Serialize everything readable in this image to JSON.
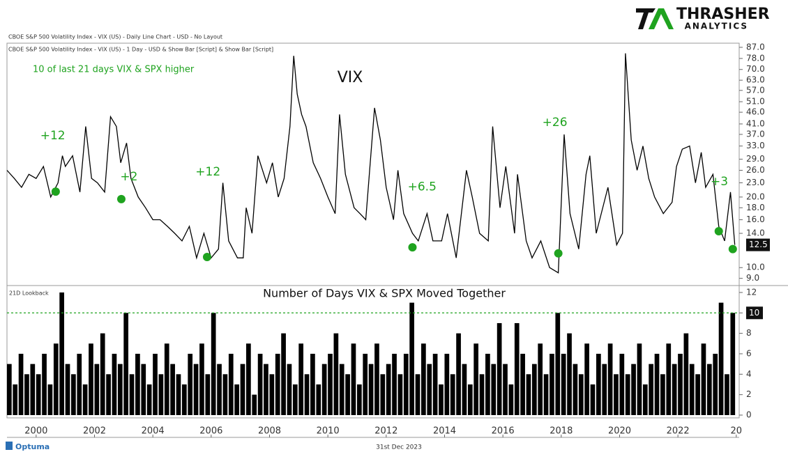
{
  "header": {
    "logo_top": "THRASHER",
    "logo_bottom": "ANALYTICS",
    "line1": "CBOE S&P 500 Volatility Index - VIX (US) - Daily Line Chart - USD - No Layout",
    "line2": "CBOE S&P 500 Volatility Index - VIX (US) - 1 Day - USD & Show Bar [Script] & Show Bar [Script]",
    "note": "10 of last 21 days VIX & SPX higher"
  },
  "footer": {
    "brand": "Optuma",
    "date": "31st Dec 2023"
  },
  "chart_data": [
    {
      "type": "line",
      "title": "VIX",
      "log_scale": true,
      "color": "#000000",
      "x": [
        1999.0,
        1999.25,
        1999.5,
        1999.75,
        2000.0,
        2000.25,
        2000.5,
        2000.75,
        2000.9,
        2001.0,
        2001.25,
        2001.5,
        2001.7,
        2001.9,
        2002.1,
        2002.35,
        2002.55,
        2002.75,
        2002.9,
        2003.1,
        2003.25,
        2003.5,
        2003.75,
        2004.0,
        2004.25,
        2004.5,
        2004.75,
        2005.0,
        2005.25,
        2005.5,
        2005.75,
        2006.0,
        2006.25,
        2006.4,
        2006.6,
        2006.9,
        2007.1,
        2007.2,
        2007.4,
        2007.6,
        2007.9,
        2008.1,
        2008.3,
        2008.5,
        2008.7,
        2008.83,
        2008.95,
        2009.1,
        2009.25,
        2009.5,
        2009.75,
        2010.0,
        2010.25,
        2010.4,
        2010.6,
        2010.9,
        2011.1,
        2011.3,
        2011.6,
        2011.8,
        2012.0,
        2012.25,
        2012.4,
        2012.6,
        2012.9,
        2013.1,
        2013.4,
        2013.6,
        2013.9,
        2014.1,
        2014.4,
        2014.75,
        2014.95,
        2015.2,
        2015.5,
        2015.65,
        2015.9,
        2016.1,
        2016.4,
        2016.5,
        2016.8,
        2017.0,
        2017.3,
        2017.6,
        2017.9,
        2018.1,
        2018.3,
        2018.6,
        2018.85,
        2018.98,
        2019.2,
        2019.6,
        2019.9,
        2020.1,
        2020.2,
        2020.4,
        2020.6,
        2020.8,
        2021.0,
        2021.2,
        2021.5,
        2021.8,
        2021.95,
        2022.15,
        2022.4,
        2022.6,
        2022.8,
        2022.95,
        2023.2,
        2023.4,
        2023.6,
        2023.8,
        2023.95
      ],
      "values": [
        26,
        24,
        22,
        25,
        24,
        27,
        20,
        23,
        30,
        27,
        30,
        21,
        40,
        24,
        23,
        21,
        44,
        40,
        28,
        34,
        24,
        20,
        18,
        16,
        16,
        15,
        14,
        13,
        15,
        11,
        14,
        11,
        12,
        23,
        13,
        11,
        11,
        18,
        14,
        30,
        23,
        28,
        20,
        24,
        40,
        80,
        55,
        45,
        40,
        28,
        24,
        20,
        17,
        45,
        25,
        18,
        17,
        16,
        48,
        35,
        22,
        16,
        26,
        17,
        14,
        13,
        17,
        13,
        13,
        17,
        11,
        26,
        20,
        14,
        13,
        40,
        18,
        27,
        14,
        25,
        13,
        11,
        13,
        10,
        9.5,
        37,
        17,
        12,
        25,
        30,
        14,
        22,
        12.5,
        14,
        82,
        35,
        26,
        33,
        24,
        20,
        17,
        19,
        27,
        32,
        33,
        23,
        31,
        22,
        25,
        15,
        13,
        21,
        12.5
      ],
      "last_label": "12.5",
      "markers": {
        "color": "#1fa31f",
        "x": [
          2000.67,
          2002.92,
          2005.86,
          2012.9,
          2017.9,
          2023.4,
          2023.88
        ],
        "values": [
          21.1,
          19.6,
          11.1,
          12.2,
          11.5,
          14.3,
          12.0
        ]
      },
      "annotations": [
        {
          "text": "+12",
          "x": 2000.57,
          "y": 36.5
        },
        {
          "text": "+2",
          "x": 2003.18,
          "y": 24.4
        },
        {
          "text": "+12",
          "x": 2005.89,
          "y": 25.6
        },
        {
          "text": "+6.5",
          "x": 2013.23,
          "y": 22.1
        },
        {
          "text": "+26",
          "x": 2017.78,
          "y": 41.6
        },
        {
          "text": "+3",
          "x": 2023.42,
          "y": 23.2
        }
      ],
      "xlim": [
        1999,
        2024.1
      ],
      "ylim": [
        8.5,
        90
      ],
      "yticks": [
        {
          "value": 87,
          "label": "87.0"
        },
        {
          "value": 78,
          "label": "78.0"
        },
        {
          "value": 70,
          "label": "70.0"
        },
        {
          "value": 63,
          "label": "63.0"
        },
        {
          "value": 57,
          "label": "57.0"
        },
        {
          "value": 51,
          "label": "51.0"
        },
        {
          "value": 46,
          "label": "46.0"
        },
        {
          "value": 41,
          "label": "41.0"
        },
        {
          "value": 37,
          "label": "37.0"
        },
        {
          "value": 33,
          "label": "33.0"
        },
        {
          "value": 29,
          "label": "29.0"
        },
        {
          "value": 26,
          "label": "26.0"
        },
        {
          "value": 23,
          "label": "23.0"
        },
        {
          "value": 20,
          "label": "20.0"
        },
        {
          "value": 18,
          "label": "18.0"
        },
        {
          "value": 16,
          "label": "16.0"
        },
        {
          "value": 14,
          "label": "14.0"
        },
        {
          "value": 10,
          "label": "10.0"
        },
        {
          "value": 9,
          "label": "9.0"
        }
      ]
    },
    {
      "type": "bar",
      "title": "Number of Days VIX & SPX Moved Together",
      "label": "21D Lookback",
      "color": "#000000",
      "x": [
        1999.0,
        1999.2,
        1999.4,
        1999.6,
        1999.8,
        2000.0,
        2000.2,
        2000.4,
        2000.6,
        2000.8,
        2001.0,
        2001.2,
        2001.4,
        2001.6,
        2001.8,
        2002.0,
        2002.2,
        2002.4,
        2002.6,
        2002.8,
        2003.0,
        2003.2,
        2003.4,
        2003.6,
        2003.8,
        2004.0,
        2004.2,
        2004.4,
        2004.6,
        2004.8,
        2005.0,
        2005.2,
        2005.4,
        2005.6,
        2005.8,
        2006.0,
        2006.2,
        2006.4,
        2006.6,
        2006.8,
        2007.0,
        2007.2,
        2007.4,
        2007.6,
        2007.8,
        2008.0,
        2008.2,
        2008.4,
        2008.6,
        2008.8,
        2009.0,
        2009.2,
        2009.4,
        2009.6,
        2009.8,
        2010.0,
        2010.2,
        2010.4,
        2010.6,
        2010.8,
        2011.0,
        2011.2,
        2011.4,
        2011.6,
        2011.8,
        2012.0,
        2012.2,
        2012.4,
        2012.6,
        2012.8,
        2013.0,
        2013.2,
        2013.4,
        2013.6,
        2013.8,
        2014.0,
        2014.2,
        2014.4,
        2014.6,
        2014.8,
        2015.0,
        2015.2,
        2015.4,
        2015.6,
        2015.8,
        2016.0,
        2016.2,
        2016.4,
        2016.6,
        2016.8,
        2017.0,
        2017.2,
        2017.4,
        2017.6,
        2017.8,
        2018.0,
        2018.2,
        2018.4,
        2018.6,
        2018.8,
        2019.0,
        2019.2,
        2019.4,
        2019.6,
        2019.8,
        2020.0,
        2020.2,
        2020.4,
        2020.6,
        2020.8,
        2021.0,
        2021.2,
        2021.4,
        2021.6,
        2021.8,
        2022.0,
        2022.2,
        2022.4,
        2022.6,
        2022.8,
        2023.0,
        2023.2,
        2023.4,
        2023.6,
        2023.8
      ],
      "values": [
        5,
        3,
        6,
        4,
        5,
        4,
        6,
        3,
        7,
        12,
        5,
        4,
        6,
        3,
        7,
        5,
        8,
        4,
        6,
        5,
        10,
        4,
        6,
        5,
        3,
        6,
        4,
        7,
        5,
        4,
        3,
        6,
        5,
        7,
        4,
        10,
        5,
        4,
        6,
        3,
        5,
        7,
        2,
        6,
        5,
        4,
        6,
        8,
        5,
        3,
        7,
        4,
        6,
        3,
        5,
        6,
        8,
        5,
        4,
        7,
        3,
        6,
        5,
        7,
        4,
        5,
        6,
        4,
        6,
        11,
        4,
        7,
        5,
        6,
        3,
        6,
        4,
        8,
        5,
        3,
        7,
        4,
        6,
        5,
        9,
        5,
        3,
        9,
        6,
        4,
        5,
        7,
        4,
        6,
        10,
        6,
        8,
        5,
        4,
        7,
        3,
        6,
        5,
        7,
        4,
        6,
        4,
        5,
        7,
        3,
        5,
        6,
        4,
        7,
        5,
        6,
        8,
        5,
        4,
        7,
        5,
        6,
        11,
        4,
        10
      ],
      "reference_line": {
        "value": 10,
        "label": "10",
        "color": "#1fa31f"
      },
      "xlim": [
        1999,
        2024.1
      ],
      "ylim": [
        0,
        12.5
      ],
      "yticks": [
        0,
        2,
        4,
        6,
        8,
        10,
        12
      ],
      "xticks": [
        2000,
        2002,
        2004,
        2006,
        2008,
        2010,
        2012,
        2014,
        2016,
        2018,
        2020,
        2022,
        {
          "value": 2024,
          "label": "20"
        }
      ]
    }
  ]
}
